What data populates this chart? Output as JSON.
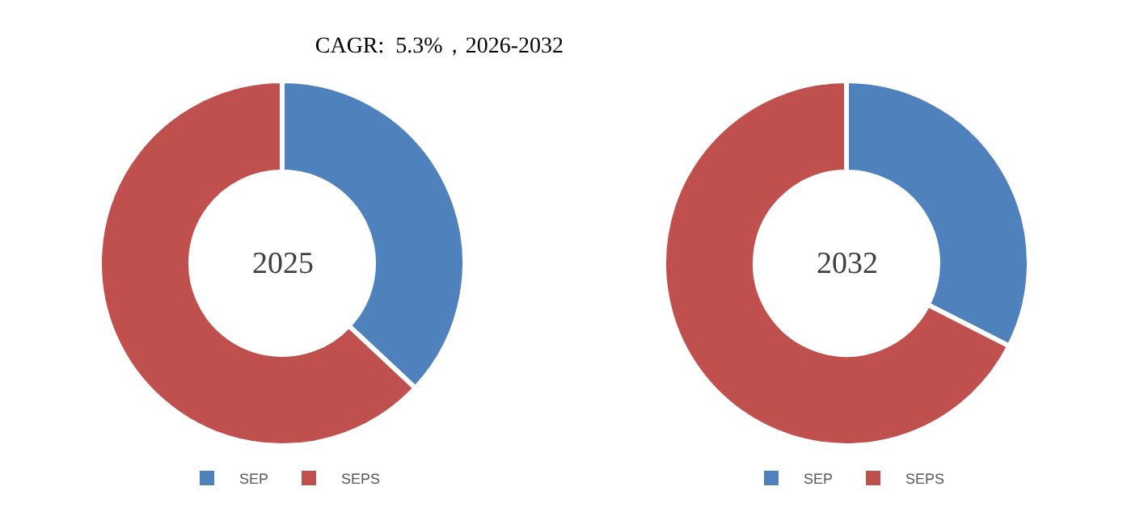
{
  "chart_data": [
    {
      "type": "donut",
      "title": "CAGR:  5.3%，2026-2032",
      "categories": [
        "SEP",
        "SEPS"
      ],
      "values": [
        37,
        63
      ],
      "colors": [
        "#4f81bd",
        "#c0504d"
      ],
      "annotations": [
        "2025"
      ],
      "legend": "bottom"
    },
    {
      "type": "donut",
      "categories": [
        "SEP",
        "SEPS"
      ],
      "values": [
        32.5,
        67.5
      ],
      "colors": [
        "#4f81bd",
        "#c0504d"
      ],
      "annotations": [
        "2032"
      ],
      "legend": "bottom"
    }
  ]
}
